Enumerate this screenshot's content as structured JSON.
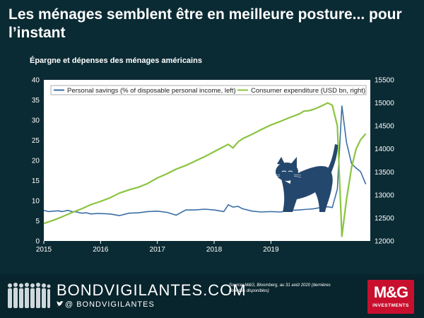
{
  "title": "Les ménages semblent être en meilleure posture... pour l’instant",
  "subtitle": "Épargne et dépenses des ménages américains",
  "colors": {
    "savings": "#3a6ea5",
    "expenditure": "#8ac43f",
    "background": "#0b2b34",
    "plot_bg": "#ffffff",
    "brand_red": "#c8102e"
  },
  "chart_data": {
    "type": "line",
    "xlabel": "",
    "ylabel": "",
    "x_ticks": [
      "2015",
      "2016",
      "2017",
      "2018",
      "2019"
    ],
    "xlim": [
      2015.0,
      2020.75
    ],
    "y_left": {
      "lim": [
        0,
        40
      ],
      "ticks": [
        "0",
        "5",
        "10",
        "15",
        "20",
        "25",
        "30",
        "35",
        "40"
      ]
    },
    "y_right": {
      "lim": [
        12000,
        15500
      ],
      "ticks": [
        "12000",
        "12500",
        "13000",
        "13500",
        "14000",
        "14500",
        "15000",
        "15500"
      ]
    },
    "legend_placement": "top",
    "grid": false,
    "series": [
      {
        "name": "Personal savings (% of disposable personal income, left)",
        "axis": "left",
        "x": [
          2015.0,
          2015.08,
          2015.17,
          2015.25,
          2015.33,
          2015.42,
          2015.5,
          2015.58,
          2015.67,
          2015.75,
          2015.83,
          2015.92,
          2016.0,
          2016.17,
          2016.33,
          2016.5,
          2016.67,
          2016.83,
          2017.0,
          2017.17,
          2017.33,
          2017.5,
          2017.67,
          2017.83,
          2018.0,
          2018.17,
          2018.25,
          2018.33,
          2018.42,
          2018.5,
          2018.67,
          2018.83,
          2019.0,
          2019.17,
          2019.33,
          2019.5,
          2019.58,
          2019.67,
          2019.75,
          2019.83,
          2019.92,
          2020.0,
          2020.08,
          2020.17,
          2020.25,
          2020.33,
          2020.42,
          2020.5,
          2020.58,
          2020.67
        ],
        "values": [
          7.6,
          7.3,
          7.4,
          7.5,
          7.3,
          7.6,
          7.3,
          7.2,
          6.9,
          7.0,
          6.7,
          6.8,
          6.8,
          6.7,
          6.3,
          6.9,
          7.0,
          7.3,
          7.4,
          7.1,
          6.4,
          7.7,
          7.7,
          7.9,
          7.7,
          7.3,
          9.0,
          8.4,
          8.6,
          8.0,
          7.4,
          7.2,
          7.3,
          7.2,
          7.6,
          7.7,
          7.8,
          7.9,
          8.0,
          8.2,
          8.3,
          8.5,
          8.3,
          12.9,
          33.5,
          24.5,
          19.2,
          18.1,
          17.2,
          14.1
        ]
      },
      {
        "name": "Consumer expenditure (USD bn, right)",
        "axis": "right",
        "x": [
          2015.0,
          2015.17,
          2015.33,
          2015.5,
          2015.67,
          2015.83,
          2016.0,
          2016.17,
          2016.33,
          2016.5,
          2016.67,
          2016.83,
          2017.0,
          2017.17,
          2017.33,
          2017.5,
          2017.67,
          2017.83,
          2018.0,
          2018.17,
          2018.25,
          2018.33,
          2018.42,
          2018.5,
          2018.67,
          2018.83,
          2019.0,
          2019.17,
          2019.33,
          2019.5,
          2019.58,
          2019.67,
          2019.75,
          2019.83,
          2019.92,
          2020.0,
          2020.08,
          2020.17,
          2020.25,
          2020.33,
          2020.42,
          2020.5,
          2020.58,
          2020.67
        ],
        "values": [
          12380,
          12450,
          12530,
          12620,
          12700,
          12790,
          12860,
          12940,
          13040,
          13110,
          13170,
          13250,
          13370,
          13460,
          13560,
          13640,
          13740,
          13830,
          13940,
          14050,
          14100,
          14020,
          14150,
          14220,
          14320,
          14420,
          14520,
          14600,
          14680,
          14760,
          14820,
          14830,
          14860,
          14900,
          14950,
          15000,
          14950,
          14500,
          12100,
          12900,
          13600,
          14000,
          14200,
          14330
        ]
      }
    ]
  },
  "footer": {
    "brand": "BONDVIGILANTES.COM",
    "social": "@  BONDVIGILANTES",
    "source": "Source:  M&G, Bloomberg, au 31 août 2020 (dernières données disponibles)",
    "logo_main": "M&G",
    "logo_sub": "INVESTMENTS"
  }
}
